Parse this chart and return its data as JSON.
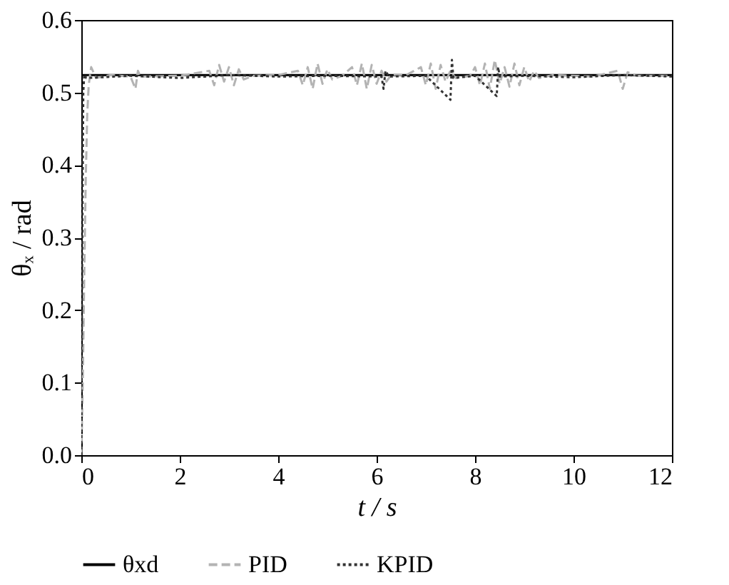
{
  "chart_data": {
    "type": "line",
    "xlabel": "t / s",
    "ylabel": "θₓ / rad",
    "xlim": [
      0,
      12
    ],
    "ylim": [
      0,
      0.6
    ],
    "xticks": [
      0,
      2,
      4,
      6,
      8,
      10,
      12
    ],
    "yticks": [
      {
        "value": 0,
        "label": "0.0"
      },
      0.1,
      0.2,
      0.3,
      0.4,
      0.5,
      0.6
    ],
    "grid": false,
    "legend": "bottom",
    "marker": "none",
    "series": [
      {
        "name": "θxd",
        "color": "#000000",
        "line_style": "solid",
        "x": [
          0,
          0.01,
          12
        ],
        "values": [
          0,
          0.524,
          0.524
        ]
      },
      {
        "name": "PID",
        "color": "#b3b3b3",
        "line_style": "dashed",
        "x": [
          0,
          0.03,
          0.06,
          0.09,
          0.12,
          0.15,
          0.2,
          0.3,
          0.6,
          1.0,
          1.1,
          1.15,
          1.2,
          2.0,
          2.6,
          2.7,
          2.8,
          2.9,
          3.0,
          3.1,
          3.2,
          3.3,
          3.5,
          4.0,
          4.4,
          4.5,
          4.6,
          4.7,
          4.8,
          4.9,
          5.0,
          5.1,
          5.3,
          5.5,
          5.6,
          5.7,
          5.8,
          5.9,
          6.0,
          6.1,
          6.2,
          6.3,
          6.6,
          6.9,
          7.0,
          7.1,
          7.2,
          7.3,
          7.4,
          7.5,
          7.6,
          7.9,
          8.0,
          8.1,
          8.2,
          8.3,
          8.4,
          8.5,
          8.6,
          8.7,
          8.8,
          8.9,
          9.0,
          9.1,
          9.2,
          9.3,
          9.6,
          10.4,
          10.9,
          11.0,
          11.1,
          11.3,
          12
        ],
        "values": [
          0,
          0.1,
          0.25,
          0.38,
          0.47,
          0.51,
          0.535,
          0.52,
          0.524,
          0.522,
          0.505,
          0.53,
          0.522,
          0.523,
          0.53,
          0.51,
          0.538,
          0.515,
          0.535,
          0.51,
          0.532,
          0.518,
          0.523,
          0.524,
          0.53,
          0.51,
          0.535,
          0.505,
          0.54,
          0.512,
          0.532,
          0.518,
          0.523,
          0.535,
          0.51,
          0.54,
          0.505,
          0.538,
          0.512,
          0.53,
          0.515,
          0.525,
          0.524,
          0.535,
          0.51,
          0.54,
          0.505,
          0.538,
          0.515,
          0.53,
          0.52,
          0.523,
          0.535,
          0.51,
          0.54,
          0.505,
          0.545,
          0.512,
          0.535,
          0.508,
          0.54,
          0.51,
          0.535,
          0.515,
          0.53,
          0.52,
          0.524,
          0.522,
          0.53,
          0.505,
          0.528,
          0.523,
          0.523
        ]
      },
      {
        "name": "KPID",
        "color": "#333333",
        "line_style": "dotted",
        "x": [
          0,
          0.02,
          0.04,
          0.06,
          0.1,
          1,
          2,
          3,
          4,
          5,
          6.1,
          6.14,
          6.18,
          6.25,
          7.0,
          7.5,
          7.53,
          7.56,
          8.0,
          8.44,
          8.47,
          8.5,
          9,
          10,
          11,
          12
        ],
        "values": [
          0,
          0.3,
          0.5,
          0.525,
          0.52,
          0.523,
          0.52,
          0.524,
          0.522,
          0.523,
          0.522,
          0.505,
          0.53,
          0.522,
          0.523,
          0.49,
          0.545,
          0.52,
          0.523,
          0.495,
          0.535,
          0.522,
          0.523,
          0.521,
          0.524,
          0.522
        ]
      }
    ]
  }
}
